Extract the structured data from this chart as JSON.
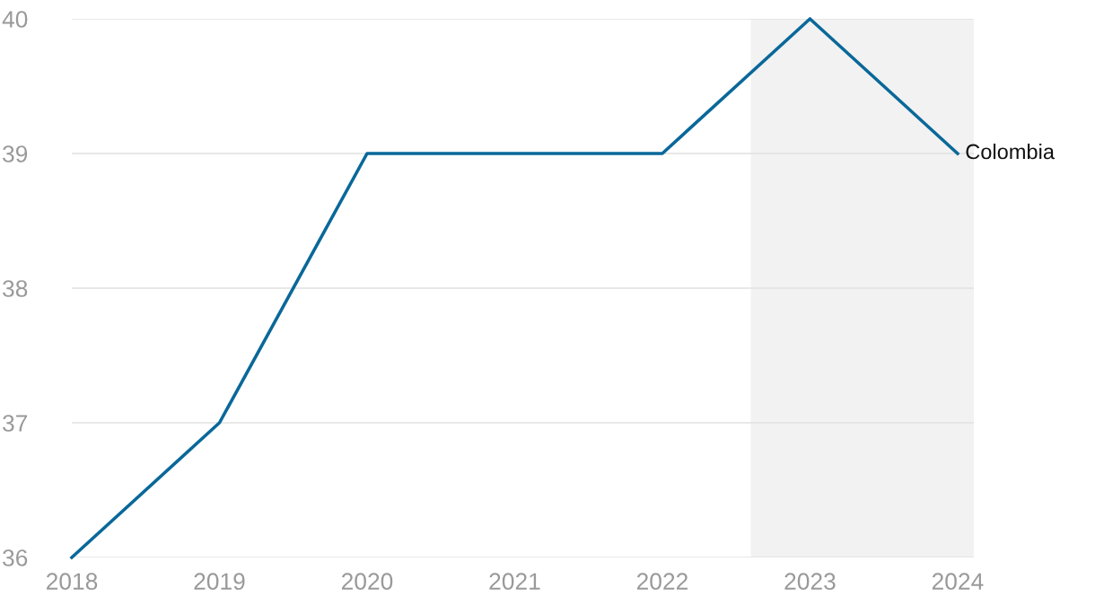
{
  "chart_data": {
    "type": "line",
    "x": [
      2018,
      2019,
      2020,
      2021,
      2022,
      2023,
      2024
    ],
    "series": [
      {
        "name": "Colombia",
        "color": "#0a6899",
        "values": [
          36,
          37,
          39,
          39,
          39,
          40,
          39
        ]
      }
    ],
    "xlim": [
      2018,
      2024.11
    ],
    "xticks": [
      2018,
      2019,
      2020,
      2021,
      2022,
      2023,
      2024
    ],
    "ylim": [
      36,
      40
    ],
    "yticks": [
      36,
      37,
      38,
      39,
      40
    ],
    "bands": [
      {
        "axis": "x",
        "from": 2022.6,
        "to": 2024.11,
        "color": "#f2f2f2"
      }
    ],
    "grid": "y",
    "legend": false,
    "marker": "none",
    "line_style": "solid"
  }
}
